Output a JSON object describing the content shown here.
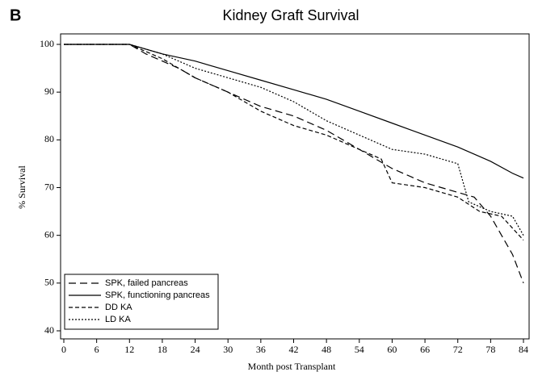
{
  "chart_data": {
    "type": "line",
    "panel_label": "B",
    "title": "Kidney Graft Survival",
    "x_label": "Month post Transplant",
    "y_label": "% Survival",
    "xlim": [
      0,
      84
    ],
    "xticks": [
      0,
      6,
      12,
      18,
      24,
      30,
      36,
      42,
      48,
      54,
      60,
      66,
      72,
      78,
      84
    ],
    "ylim": [
      40,
      100
    ],
    "yticks": [
      40,
      50,
      60,
      70,
      80,
      90,
      100
    ],
    "legend": "lower-left",
    "series": [
      {
        "name": "SPK, failed pancreas",
        "color": "#000000",
        "dash": "9,5",
        "x": [
          0,
          12,
          15,
          18,
          21,
          24,
          30,
          36,
          42,
          48,
          54,
          57,
          60,
          63,
          66,
          72,
          75,
          78,
          80,
          82,
          83,
          84
        ],
        "values": [
          100,
          100,
          98,
          96.5,
          95,
          93,
          90,
          87,
          85,
          82,
          78,
          76,
          74,
          72.5,
          71,
          69,
          68,
          64,
          60,
          56,
          53,
          50
        ]
      },
      {
        "name": "SPK, functioning pancreas",
        "color": "#000000",
        "dash": "none",
        "x": [
          0,
          12,
          18,
          24,
          30,
          36,
          42,
          48,
          54,
          60,
          66,
          72,
          78,
          82,
          84
        ],
        "values": [
          100,
          100,
          98,
          96.5,
          94.5,
          92.5,
          90.5,
          88.5,
          86,
          83.5,
          81,
          78.5,
          75.5,
          73,
          72
        ]
      },
      {
        "name": "DD KA",
        "color": "#000000",
        "dash": "5,3",
        "x": [
          0,
          12,
          18,
          24,
          30,
          36,
          42,
          48,
          54,
          58,
          60,
          66,
          72,
          76,
          80,
          84
        ],
        "values": [
          100,
          100,
          97,
          93,
          90,
          86,
          83,
          81,
          78,
          76,
          71,
          70,
          68,
          65,
          64,
          59
        ]
      },
      {
        "name": "LD KA",
        "color": "#000000",
        "dash": "2,2",
        "x": [
          0,
          12,
          18,
          24,
          30,
          36,
          42,
          48,
          54,
          60,
          66,
          72,
          74,
          78,
          82,
          84
        ],
        "values": [
          100,
          100,
          98,
          95,
          93,
          91,
          88,
          84,
          81,
          78,
          77,
          75,
          67,
          65,
          64,
          60
        ]
      }
    ]
  }
}
